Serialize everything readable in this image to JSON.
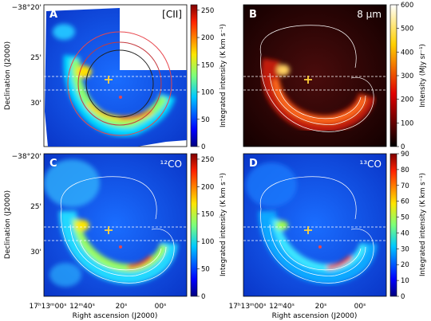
{
  "panels": [
    {
      "letter": "A",
      "label": "[CII]",
      "colorbar_label": "Integrated intensity (K km s⁻¹)",
      "ticks": [
        "0",
        "50",
        "100",
        "150",
        "200",
        "250"
      ],
      "vmax": 260,
      "colormap": "jet"
    },
    {
      "letter": "B",
      "label": "8 µm",
      "colorbar_label": "Intensity (MJy sr⁻¹)",
      "ticks": [
        "0",
        "100",
        "200",
        "300",
        "400",
        "500",
        "600"
      ],
      "vmax": 600,
      "colormap": "hot"
    },
    {
      "letter": "C",
      "label": "¹²CO",
      "colorbar_label": "Integrated intensity (K km s⁻¹)",
      "ticks": [
        "0",
        "50",
        "100",
        "150",
        "200",
        "250"
      ],
      "vmax": 260,
      "colormap": "jet"
    },
    {
      "letter": "D",
      "label": "¹³CO",
      "colorbar_label": "Integrated intensity (K km s⁻¹)",
      "ticks": [
        "0",
        "10",
        "20",
        "30",
        "40",
        "50",
        "60",
        "70",
        "80",
        "90"
      ],
      "vmax": 90,
      "colormap": "jet"
    }
  ],
  "axes": {
    "dec_label": "Declination (J2000)",
    "ra_label": "Right ascension (J2000)",
    "dec_ticks": [
      "−38°20'",
      "25'",
      "30'"
    ],
    "ra_ticks": [
      "17ʰ13ᵐ00ˢ",
      "12ᵐ40ˢ",
      "20ˢ",
      "00ˢ"
    ]
  },
  "colors": {
    "marker": "#ffd23a",
    "circle": "#e8474e",
    "contour": "#ffffff"
  }
}
